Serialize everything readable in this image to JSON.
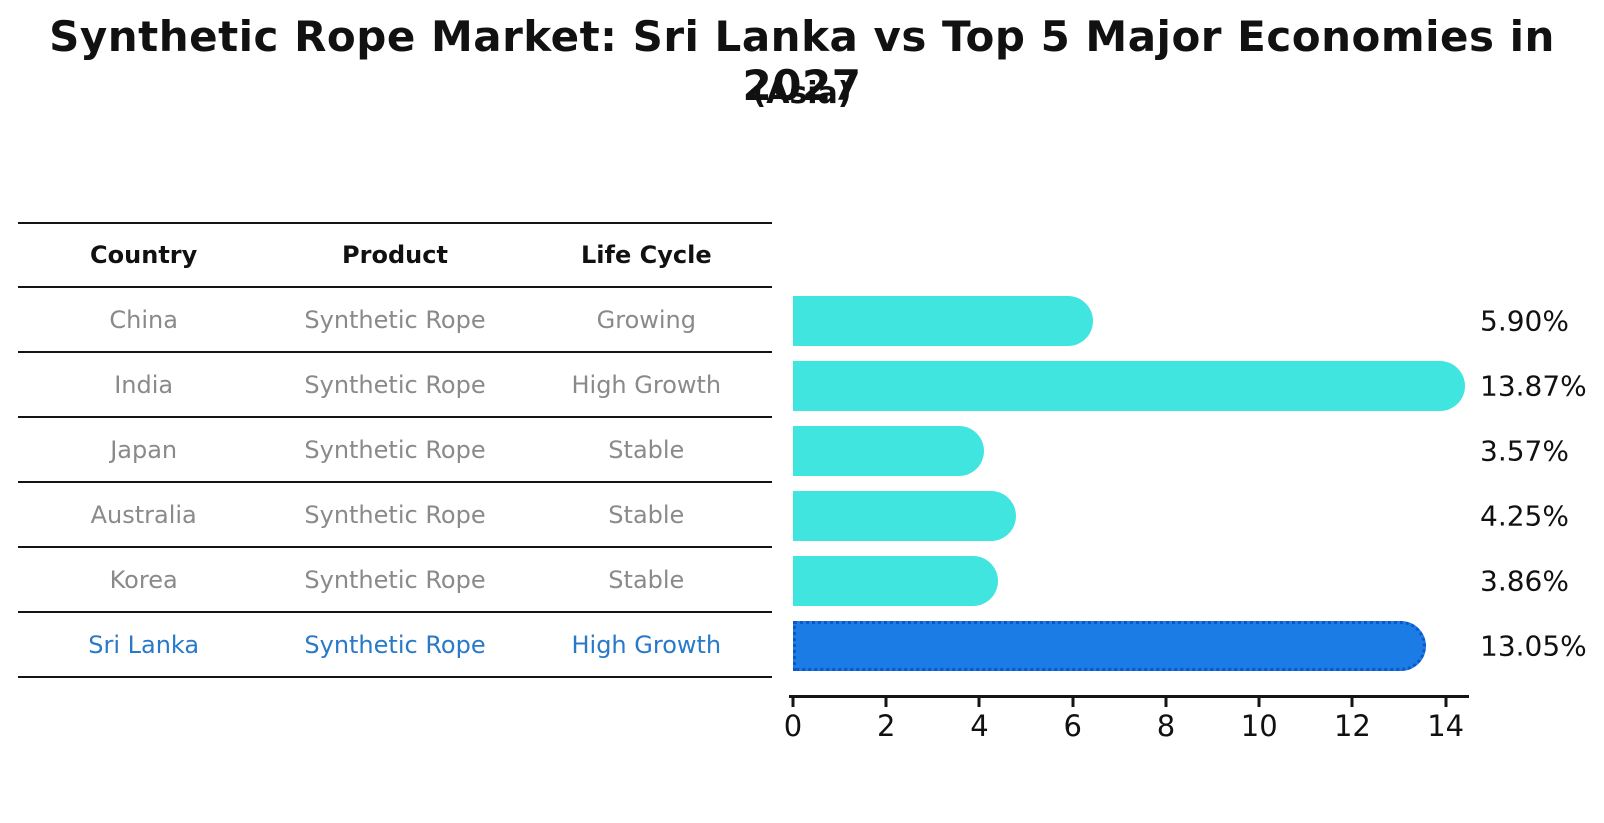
{
  "title": "Synthetic Rope Market: Sri Lanka vs Top 5 Major Economies in 2027",
  "subtitle": "(Asia)",
  "table": {
    "headers": [
      "Country",
      "Product",
      "Life Cycle"
    ],
    "rows": [
      {
        "country": "China",
        "product": "Synthetic Rope",
        "life_cycle": "Growing",
        "highlight": false
      },
      {
        "country": "India",
        "product": "Synthetic Rope",
        "life_cycle": "High Growth",
        "highlight": false
      },
      {
        "country": "Japan",
        "product": "Synthetic Rope",
        "life_cycle": "Stable",
        "highlight": false
      },
      {
        "country": "Australia",
        "product": "Synthetic Rope",
        "life_cycle": "Stable",
        "highlight": false
      },
      {
        "country": "Korea",
        "product": "Synthetic Rope",
        "life_cycle": "Stable",
        "highlight": false
      },
      {
        "country": "Sri Lanka",
        "product": "Synthetic Rope",
        "life_cycle": "High Growth",
        "highlight": true
      }
    ]
  },
  "chart_data": {
    "type": "bar",
    "orientation": "horizontal",
    "categories": [
      "China",
      "India",
      "Japan",
      "Australia",
      "Korea",
      "Sri Lanka"
    ],
    "values": [
      5.9,
      13.87,
      3.57,
      4.25,
      3.86,
      13.05
    ],
    "value_labels": [
      "5.90%",
      "13.87%",
      "3.57%",
      "4.25%",
      "3.86%",
      "13.05%"
    ],
    "xticks": [
      0,
      2,
      4,
      6,
      8,
      10,
      12,
      14
    ],
    "xlim": [
      0,
      14.5
    ],
    "grid": false,
    "legend": "none",
    "bar_color": "#40e5e0",
    "highlight_color": "#1b7ce5",
    "highlight_border_color": "#1056c8",
    "highlight_index": 5,
    "highlight_text_color": "#2979c9",
    "title": "Synthetic Rope Market: Sri Lanka vs Top 5 Major Economies in 2027",
    "subtitle": "(Asia)"
  }
}
